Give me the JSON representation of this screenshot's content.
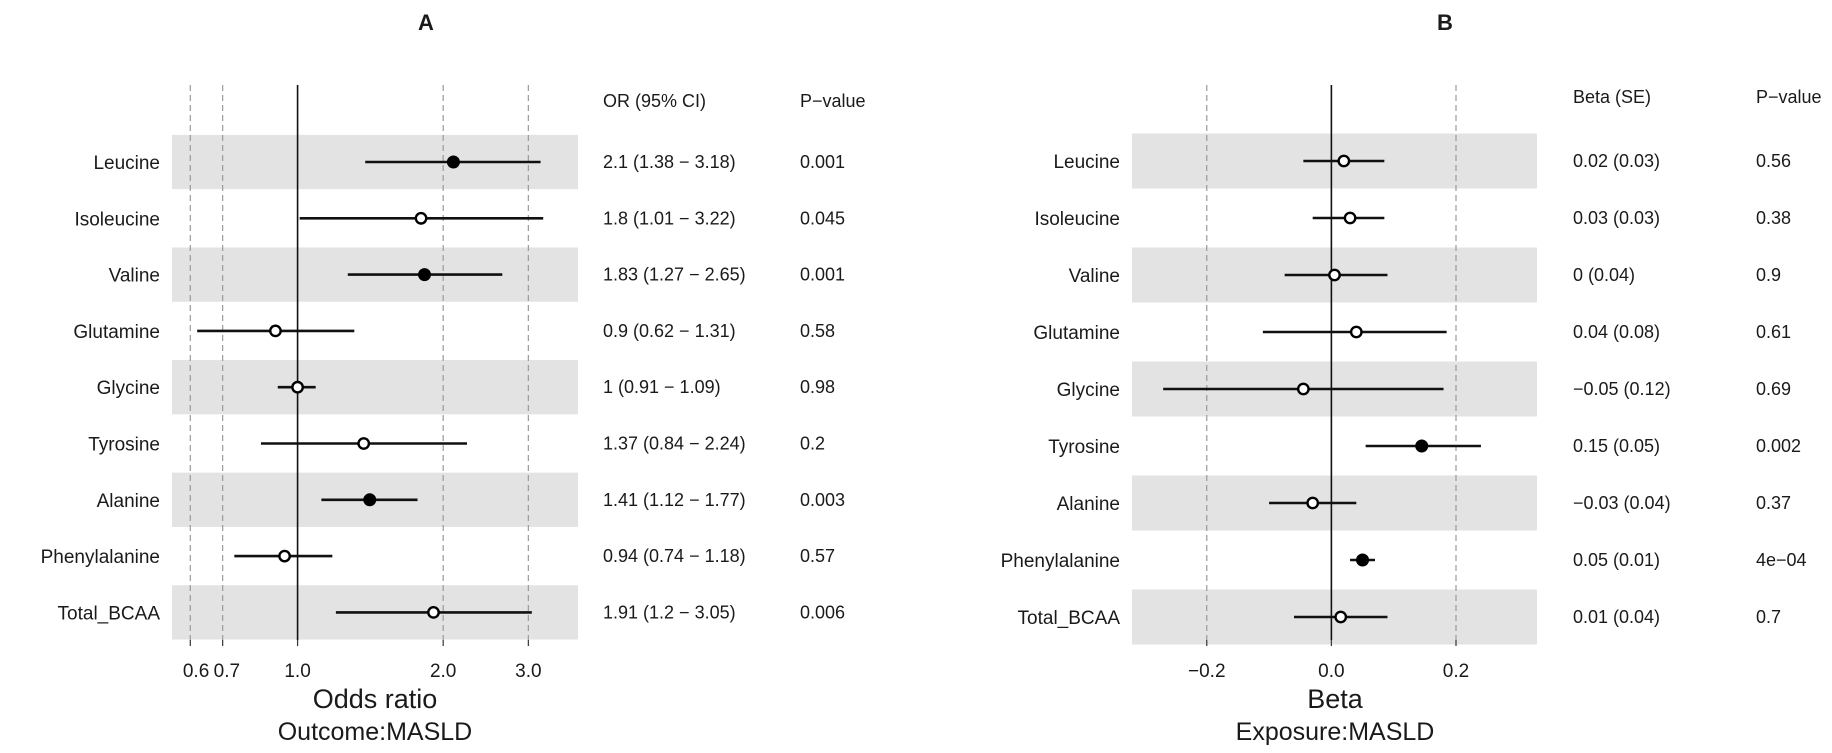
{
  "chart_data": [
    {
      "type": "forest",
      "title": "A",
      "scale": "log",
      "xlabel": "Odds ratio",
      "xsublabel": "Outcome:MASLD",
      "reference_line": 1.0,
      "xticks": [
        0.6,
        0.7,
        1.0,
        2.0,
        3.0
      ],
      "xtick_labels": [
        "0.6",
        "0.7",
        "1.0",
        "2.0",
        "3.0"
      ],
      "xlim": [
        0.55,
        3.8
      ],
      "col_headers": [
        "OR (95% CI)",
        "P−value"
      ],
      "rows": [
        {
          "label": "Leucine",
          "est": 2.1,
          "lo": 1.38,
          "hi": 3.18,
          "text": "2.1 (1.38 − 3.18)",
          "p": "0.001",
          "significant": true
        },
        {
          "label": "Isoleucine",
          "est": 1.8,
          "lo": 1.01,
          "hi": 3.22,
          "text": "1.8 (1.01 − 3.22)",
          "p": "0.045",
          "significant": false
        },
        {
          "label": "Valine",
          "est": 1.83,
          "lo": 1.27,
          "hi": 2.65,
          "text": "1.83 (1.27 − 2.65)",
          "p": "0.001",
          "significant": true
        },
        {
          "label": "Glutamine",
          "est": 0.9,
          "lo": 0.62,
          "hi": 1.31,
          "text": "0.9 (0.62 − 1.31)",
          "p": "0.58",
          "significant": false
        },
        {
          "label": "Glycine",
          "est": 1.0,
          "lo": 0.91,
          "hi": 1.09,
          "text": "1 (0.91 − 1.09)",
          "p": "0.98",
          "significant": false
        },
        {
          "label": "Tyrosine",
          "est": 1.37,
          "lo": 0.84,
          "hi": 2.24,
          "text": "1.37 (0.84 − 2.24)",
          "p": "0.2",
          "significant": false
        },
        {
          "label": "Alanine",
          "est": 1.41,
          "lo": 1.12,
          "hi": 1.77,
          "text": "1.41 (1.12 − 1.77)",
          "p": "0.003",
          "significant": true
        },
        {
          "label": "Phenylalanine",
          "est": 0.94,
          "lo": 0.74,
          "hi": 1.18,
          "text": "0.94 (0.74 − 1.18)",
          "p": "0.57",
          "significant": false
        },
        {
          "label": "Total_BCAA",
          "est": 1.91,
          "lo": 1.2,
          "hi": 3.05,
          "text": "1.91 (1.2 − 3.05)",
          "p": "0.006",
          "significant": false
        }
      ]
    },
    {
      "type": "forest",
      "title": "B",
      "scale": "linear",
      "xlabel": "Beta",
      "xsublabel": "Exposure:MASLD",
      "reference_line": 0.0,
      "xticks": [
        -0.2,
        0.0,
        0.2
      ],
      "xtick_labels": [
        "−0.2",
        "0.0",
        "0.2"
      ],
      "xlim": [
        -0.32,
        0.33
      ],
      "col_headers": [
        "Beta (SE)",
        "P−value"
      ],
      "rows": [
        {
          "label": "Leucine",
          "est": 0.02,
          "lo": -0.045,
          "hi": 0.085,
          "text": "0.02 (0.03)",
          "p": "0.56",
          "significant": false
        },
        {
          "label": "Isoleucine",
          "est": 0.03,
          "lo": -0.03,
          "hi": 0.085,
          "text": "0.03 (0.03)",
          "p": "0.38",
          "significant": false
        },
        {
          "label": "Valine",
          "est": 0.005,
          "lo": -0.075,
          "hi": 0.09,
          "text": "0 (0.04)",
          "p": "0.9",
          "significant": false
        },
        {
          "label": "Glutamine",
          "est": 0.04,
          "lo": -0.11,
          "hi": 0.185,
          "text": "0.04 (0.08)",
          "p": "0.61",
          "significant": false
        },
        {
          "label": "Glycine",
          "est": -0.045,
          "lo": -0.27,
          "hi": 0.18,
          "text": "−0.05 (0.12)",
          "p": "0.69",
          "significant": false
        },
        {
          "label": "Tyrosine",
          "est": 0.145,
          "lo": 0.055,
          "hi": 0.24,
          "text": "0.15 (0.05)",
          "p": "0.002",
          "significant": true
        },
        {
          "label": "Alanine",
          "est": -0.03,
          "lo": -0.1,
          "hi": 0.04,
          "text": "−0.03 (0.04)",
          "p": "0.37",
          "significant": false
        },
        {
          "label": "Phenylalanine",
          "est": 0.05,
          "lo": 0.03,
          "hi": 0.07,
          "text": "0.05 (0.01)",
          "p": "4e−04",
          "significant": true
        },
        {
          "label": "Total_BCAA",
          "est": 0.015,
          "lo": -0.06,
          "hi": 0.09,
          "text": "0.01 (0.04)",
          "p": "0.7",
          "significant": false
        }
      ]
    }
  ]
}
